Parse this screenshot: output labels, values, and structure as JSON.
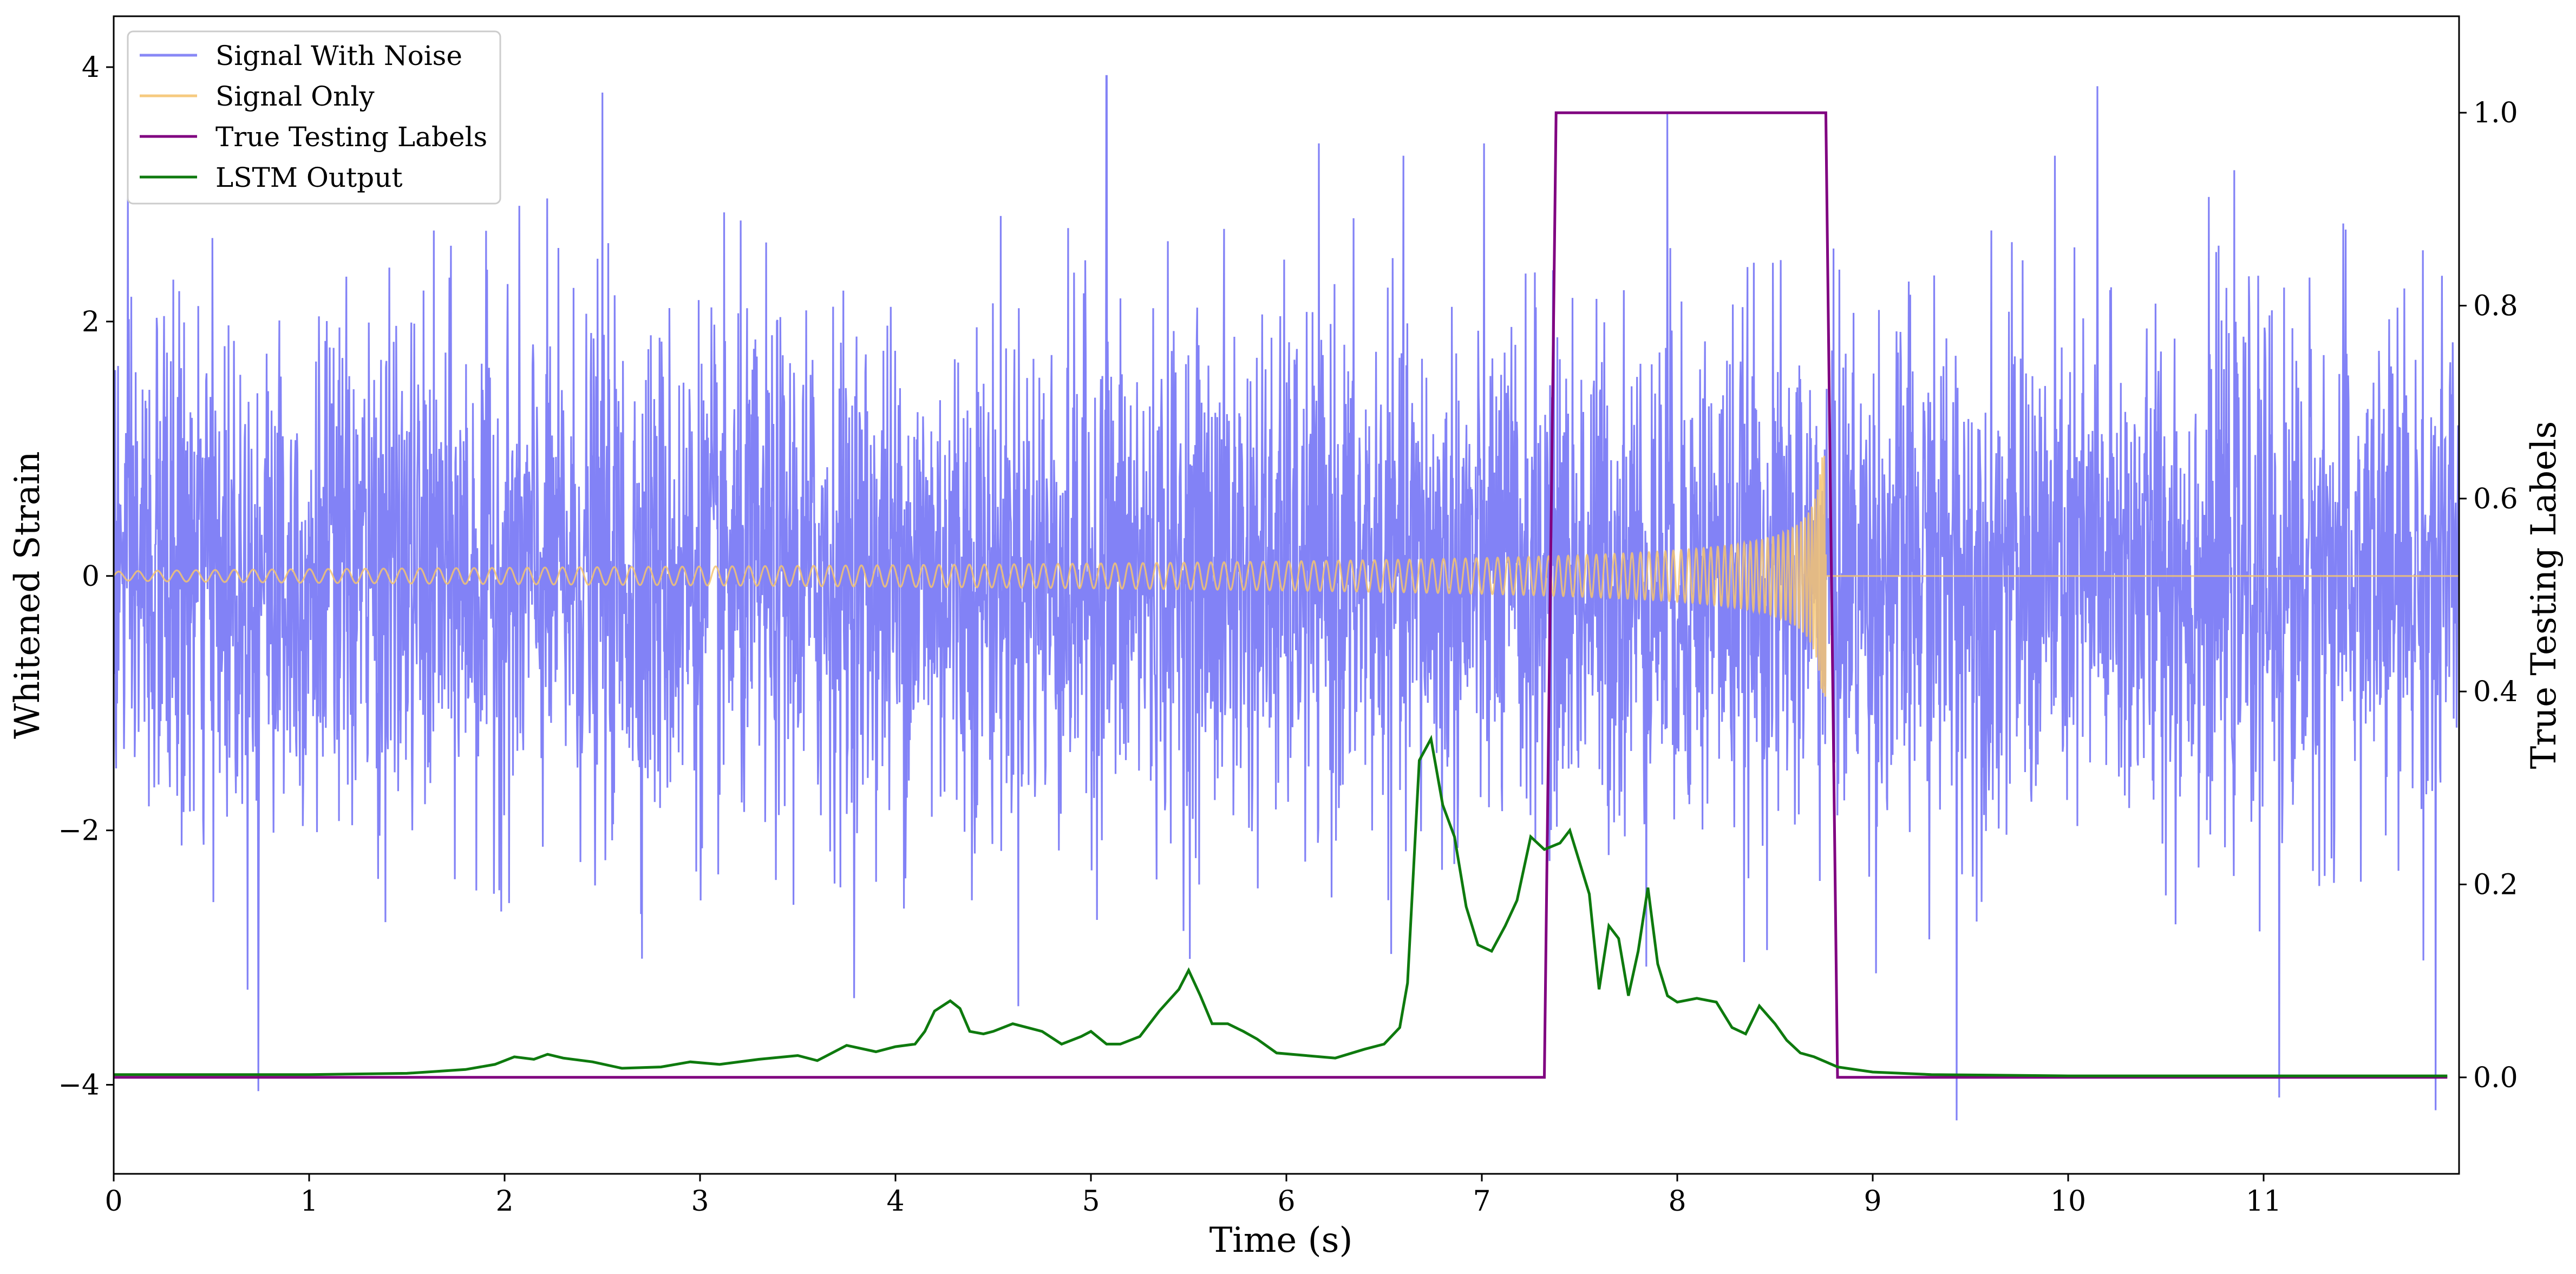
{
  "chart_data": {
    "type": "line",
    "title": "",
    "xlabel": "Time (s)",
    "ylabel_left": "Whitened Strain",
    "ylabel_right": "True Testing Labels",
    "xlim": [
      0,
      12
    ],
    "ylim_left": [
      -4.7,
      4.4
    ],
    "ylim_right": [
      -0.1,
      1.1
    ],
    "x_ticks": [
      0,
      1,
      2,
      3,
      4,
      5,
      6,
      7,
      8,
      9,
      10,
      11
    ],
    "x_tick_labels": [
      "0",
      "1",
      "2",
      "3",
      "4",
      "5",
      "6",
      "7",
      "8",
      "9",
      "10",
      "11"
    ],
    "y_left_ticks": [
      4,
      2,
      0,
      -2,
      -4
    ],
    "y_left_tick_labels": [
      "4",
      "2",
      "0",
      "−2",
      "−4"
    ],
    "y_right_ticks": [
      1.0,
      0.8,
      0.6,
      0.4,
      0.2,
      0.0
    ],
    "y_right_tick_labels": [
      "1.0",
      "0.8",
      "0.6",
      "0.4",
      "0.2",
      "0.0"
    ],
    "grid": false,
    "legend_position": "top-left",
    "legend": [
      "Signal With Noise",
      "Signal Only",
      "True Testing Labels",
      "LSTM Output"
    ],
    "series": [
      {
        "name": "Signal With Noise",
        "axis": "left",
        "color": "#7b7bf5",
        "description_values": {
          "x_range": [
            0,
            12
          ],
          "approx_std": 1.0,
          "min": -4.3,
          "max": 3.9
        },
        "spikes": [
          {
            "x": 0.74,
            "y": -4.05
          },
          {
            "x": 2.5,
            "y": 3.8
          },
          {
            "x": 5.08,
            "y": 3.93
          },
          {
            "x": 7.95,
            "y": 3.65
          },
          {
            "x": 9.43,
            "y": -4.28
          },
          {
            "x": 10.15,
            "y": 3.85
          },
          {
            "x": 11.08,
            "y": -4.1
          },
          {
            "x": 11.88,
            "y": -4.2
          }
        ]
      },
      {
        "name": "Signal Only",
        "axis": "left",
        "color": "#f5c471",
        "chirp": {
          "t_start": 0,
          "t_end": 8.76,
          "amp_start": 0.03,
          "amp_end": 0.95,
          "after_end_value": 0
        }
      },
      {
        "name": "True Testing Labels",
        "axis": "right",
        "color": "#800080",
        "x": [
          0,
          7.32,
          7.38,
          8.76,
          8.82,
          11.94
        ],
        "y": [
          0,
          0,
          1,
          1,
          0,
          0
        ]
      },
      {
        "name": "LSTM Output",
        "axis": "left",
        "color": "#0e7a0e",
        "x": [
          0,
          0.5,
          1.0,
          1.5,
          1.8,
          1.95,
          2.05,
          2.15,
          2.22,
          2.3,
          2.45,
          2.6,
          2.8,
          2.95,
          3.1,
          3.3,
          3.5,
          3.6,
          3.75,
          3.9,
          4.0,
          4.1,
          4.15,
          4.2,
          4.28,
          4.33,
          4.38,
          4.45,
          4.5,
          4.6,
          4.75,
          4.85,
          4.95,
          5.0,
          5.08,
          5.15,
          5.25,
          5.35,
          5.45,
          5.5,
          5.56,
          5.62,
          5.7,
          5.78,
          5.85,
          5.95,
          6.1,
          6.25,
          6.4,
          6.5,
          6.58,
          6.62,
          6.68,
          6.74,
          6.8,
          6.86,
          6.92,
          6.98,
          7.05,
          7.12,
          7.18,
          7.25,
          7.32,
          7.4,
          7.45,
          7.5,
          7.55,
          7.6,
          7.65,
          7.7,
          7.75,
          7.8,
          7.85,
          7.9,
          7.95,
          8.0,
          8.1,
          8.2,
          8.28,
          8.35,
          8.42,
          8.5,
          8.56,
          8.63,
          8.7,
          8.76,
          8.82,
          9.0,
          9.3,
          10.0,
          11.0,
          11.94
        ],
        "y": [
          -3.92,
          -3.92,
          -3.92,
          -3.91,
          -3.88,
          -3.84,
          -3.78,
          -3.8,
          -3.76,
          -3.79,
          -3.82,
          -3.87,
          -3.86,
          -3.82,
          -3.84,
          -3.8,
          -3.77,
          -3.81,
          -3.69,
          -3.74,
          -3.7,
          -3.68,
          -3.58,
          -3.42,
          -3.34,
          -3.4,
          -3.58,
          -3.6,
          -3.58,
          -3.52,
          -3.58,
          -3.68,
          -3.62,
          -3.58,
          -3.68,
          -3.68,
          -3.62,
          -3.42,
          -3.25,
          -3.1,
          -3.3,
          -3.52,
          -3.52,
          -3.58,
          -3.64,
          -3.75,
          -3.77,
          -3.79,
          -3.72,
          -3.68,
          -3.55,
          -3.2,
          -1.45,
          -1.28,
          -1.8,
          -2.05,
          -2.6,
          -2.9,
          -2.95,
          -2.75,
          -2.55,
          -2.05,
          -2.15,
          -2.1,
          -2.0,
          -2.25,
          -2.5,
          -3.25,
          -2.75,
          -2.85,
          -3.3,
          -2.95,
          -2.45,
          -3.05,
          -3.3,
          -3.35,
          -3.32,
          -3.35,
          -3.55,
          -3.6,
          -3.38,
          -3.52,
          -3.65,
          -3.75,
          -3.78,
          -3.82,
          -3.86,
          -3.9,
          -3.92,
          -3.93,
          -3.93,
          -3.93
        ]
      }
    ]
  }
}
